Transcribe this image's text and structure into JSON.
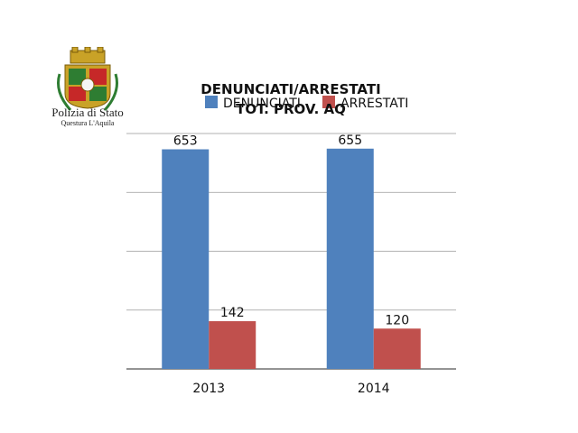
{
  "logo": {
    "line1": "Polizia di Stato",
    "line2": "Questura L'Aquila"
  },
  "chart_data": {
    "type": "bar",
    "title": "DENUNCIATI/ARRESTATI",
    "subtitle": "TOT. PROV. AQ",
    "categories": [
      "2013",
      "2014"
    ],
    "series": [
      {
        "name": "DENUNCIATI",
        "values": [
          653,
          655
        ],
        "color": "#4f81bd"
      },
      {
        "name": "ARRESTATI",
        "values": [
          142,
          120
        ],
        "color": "#c0504d"
      }
    ],
    "ylim": [
      0,
      700
    ],
    "grid": true,
    "legend": "top"
  }
}
